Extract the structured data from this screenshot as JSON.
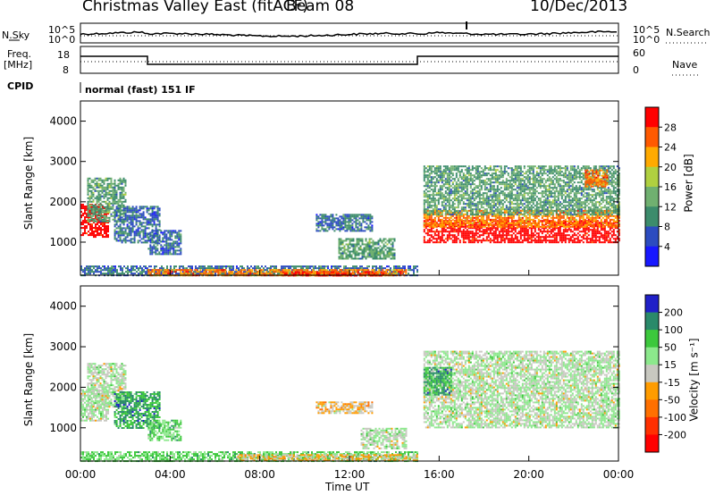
{
  "header": {
    "title": "Christmas Valley East (fitACF)",
    "beam": "Beam 08",
    "date": "10/Dec/2013"
  },
  "strip": {
    "nsky_label": "N.Sky",
    "nsky_ticks": [
      "10^5",
      "10^0"
    ],
    "nsearch_label": "N.Search",
    "nsearch_ticks": [
      "10^5",
      "10^0"
    ],
    "freq_label_1": "Freq.",
    "freq_label_2": "[MHz]",
    "freq_ticks": [
      "18",
      "8"
    ],
    "nave_label": "Nave",
    "nave_ticks": [
      "60",
      "0"
    ],
    "cpid_label": "CPID",
    "cpid_value": "normal (fast) 151 IF"
  },
  "chart_data": [
    {
      "type": "heatmap",
      "name": "power-panel",
      "ylabel": "Slant Range [km]",
      "yticks": [
        1000,
        2000,
        3000,
        4000
      ],
      "ylim": [
        180,
        4500
      ],
      "xlim": [
        0,
        24
      ],
      "colorbar": {
        "label": "Power [dB]",
        "ticks": [
          "28",
          "24",
          "20",
          "16",
          "12",
          "8",
          "4"
        ],
        "colors": [
          "#ff0000",
          "#ff5a00",
          "#ffaa00",
          "#b0d040",
          "#70b070",
          "#3c8c6c",
          "#2c4cc0",
          "#1818ff"
        ]
      },
      "regions": [
        {
          "t": [
            0.0,
            1.2
          ],
          "r": [
            1150,
            1950
          ],
          "level": 0
        },
        {
          "t": [
            0.3,
            2.0
          ],
          "r": [
            1500,
            2600
          ],
          "level": 5
        },
        {
          "t": [
            1.5,
            3.5
          ],
          "r": [
            1000,
            1900
          ],
          "level": 6
        },
        {
          "t": [
            3.0,
            4.5
          ],
          "r": [
            700,
            1300
          ],
          "level": 6
        },
        {
          "t": [
            0.0,
            15.0
          ],
          "r": [
            180,
            420
          ],
          "level": 6
        },
        {
          "t": [
            3.0,
            14.5
          ],
          "r": [
            180,
            330
          ],
          "level": 2
        },
        {
          "t": [
            9.0,
            13.5
          ],
          "r": [
            180,
            280
          ],
          "level": 1
        },
        {
          "t": [
            10.5,
            13.0
          ],
          "r": [
            1300,
            1700
          ],
          "level": 6
        },
        {
          "t": [
            11.5,
            14.0
          ],
          "r": [
            600,
            1100
          ],
          "level": 5
        },
        {
          "t": [
            15.3,
            24.0
          ],
          "r": [
            1000,
            1550
          ],
          "level": 0
        },
        {
          "t": [
            15.3,
            24.0
          ],
          "r": [
            1400,
            1800
          ],
          "level": 2
        },
        {
          "t": [
            15.3,
            24.0
          ],
          "r": [
            1700,
            2900
          ],
          "level": 5
        },
        {
          "t": [
            22.5,
            23.5
          ],
          "r": [
            2400,
            2800
          ],
          "level": 2
        }
      ]
    },
    {
      "type": "heatmap",
      "name": "velocity-panel",
      "ylabel": "Slant Range [km]",
      "yticks": [
        1000,
        2000,
        3000,
        4000
      ],
      "ylim": [
        180,
        4500
      ],
      "xlim": [
        0,
        24
      ],
      "xticks": [
        "00:00",
        "04:00",
        "08:00",
        "12:00",
        "16:00",
        "20:00",
        "00:00"
      ],
      "xlabel": "Time UT",
      "colorbar": {
        "label": "Velocity [m s⁻¹]",
        "ticks": [
          "200",
          "100",
          "50",
          "15",
          "-15",
          "-50",
          "-100",
          "-200"
        ],
        "colors": [
          "#2020c8",
          "#2a8a6a",
          "#3cc83c",
          "#8ce88c",
          "#c8c8c0",
          "#ff9c00",
          "#ff7000",
          "#ff3000",
          "#ff0000"
        ]
      },
      "regions": [
        {
          "t": [
            0.0,
            1.2
          ],
          "r": [
            1200,
            1950
          ],
          "level": 4
        },
        {
          "t": [
            0.3,
            2.0
          ],
          "r": [
            1500,
            2600
          ],
          "level": 4
        },
        {
          "t": [
            1.5,
            3.5
          ],
          "r": [
            1000,
            1900
          ],
          "level": 2
        },
        {
          "t": [
            3.0,
            4.5
          ],
          "r": [
            700,
            1200
          ],
          "level": 3
        },
        {
          "t": [
            0.0,
            15.0
          ],
          "r": [
            180,
            420
          ],
          "level": 3
        },
        {
          "t": [
            7.0,
            15.0
          ],
          "r": [
            180,
            350
          ],
          "level": 5
        },
        {
          "t": [
            10.5,
            13.0
          ],
          "r": [
            1350,
            1650
          ],
          "level": 5
        },
        {
          "t": [
            12.5,
            14.5
          ],
          "r": [
            500,
            1000
          ],
          "level": 4
        },
        {
          "t": [
            15.3,
            24.0
          ],
          "r": [
            1000,
            2000
          ],
          "level": 4
        },
        {
          "t": [
            15.3,
            24.0
          ],
          "r": [
            2000,
            2900
          ],
          "level": 4
        },
        {
          "t": [
            15.3,
            16.5
          ],
          "r": [
            1800,
            2500
          ],
          "level": 2
        }
      ]
    }
  ]
}
